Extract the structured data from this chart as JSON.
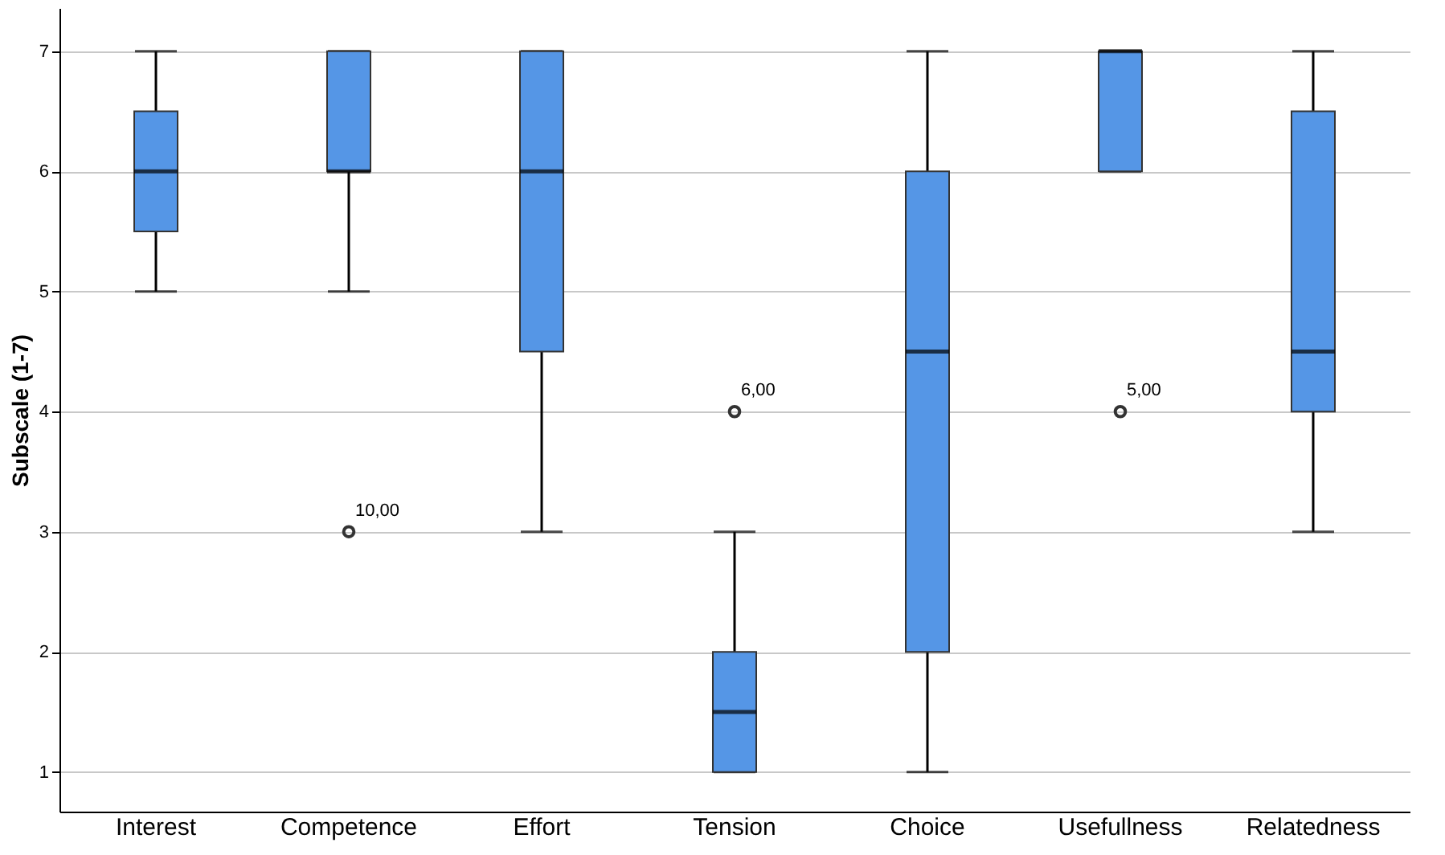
{
  "chart_data": {
    "type": "box",
    "ylabel": "Subscale (1-7)",
    "color": "#5596e6",
    "categories": [
      "Interest",
      "Competence",
      "Effort",
      "Tension",
      "Choice",
      "Usefullness",
      "Relatedness"
    ],
    "boxes": [
      {
        "low": 5,
        "q1": 5.5,
        "median": 6,
        "q3": 6.5,
        "high": 7
      },
      {
        "low": 5,
        "q1": 6,
        "median": 6,
        "q3": 7,
        "high": 7,
        "outliers": [
          3
        ]
      },
      {
        "low": 3,
        "q1": 4.5,
        "median": 6,
        "q3": 7,
        "high": 7
      },
      {
        "low": 1,
        "q1": 1,
        "median": 1.5,
        "q3": 2,
        "high": 3,
        "outliers": [
          4
        ]
      },
      {
        "low": 1,
        "q1": 2,
        "median": 4.5,
        "q3": 6,
        "high": 7
      },
      {
        "low": 6,
        "q1": 6,
        "median": 7,
        "q3": 7,
        "high": 7,
        "outliers": [
          4
        ]
      },
      {
        "low": 3,
        "q1": 4,
        "median": 4.5,
        "q3": 6.5,
        "high": 7
      }
    ],
    "ylim": [
      0.67,
      7.36
    ],
    "yticks": [
      1,
      2,
      3,
      4,
      5,
      6,
      7
    ],
    "grid": "y",
    "annotations": [
      "10,00",
      "6,00",
      "5,00"
    ]
  }
}
